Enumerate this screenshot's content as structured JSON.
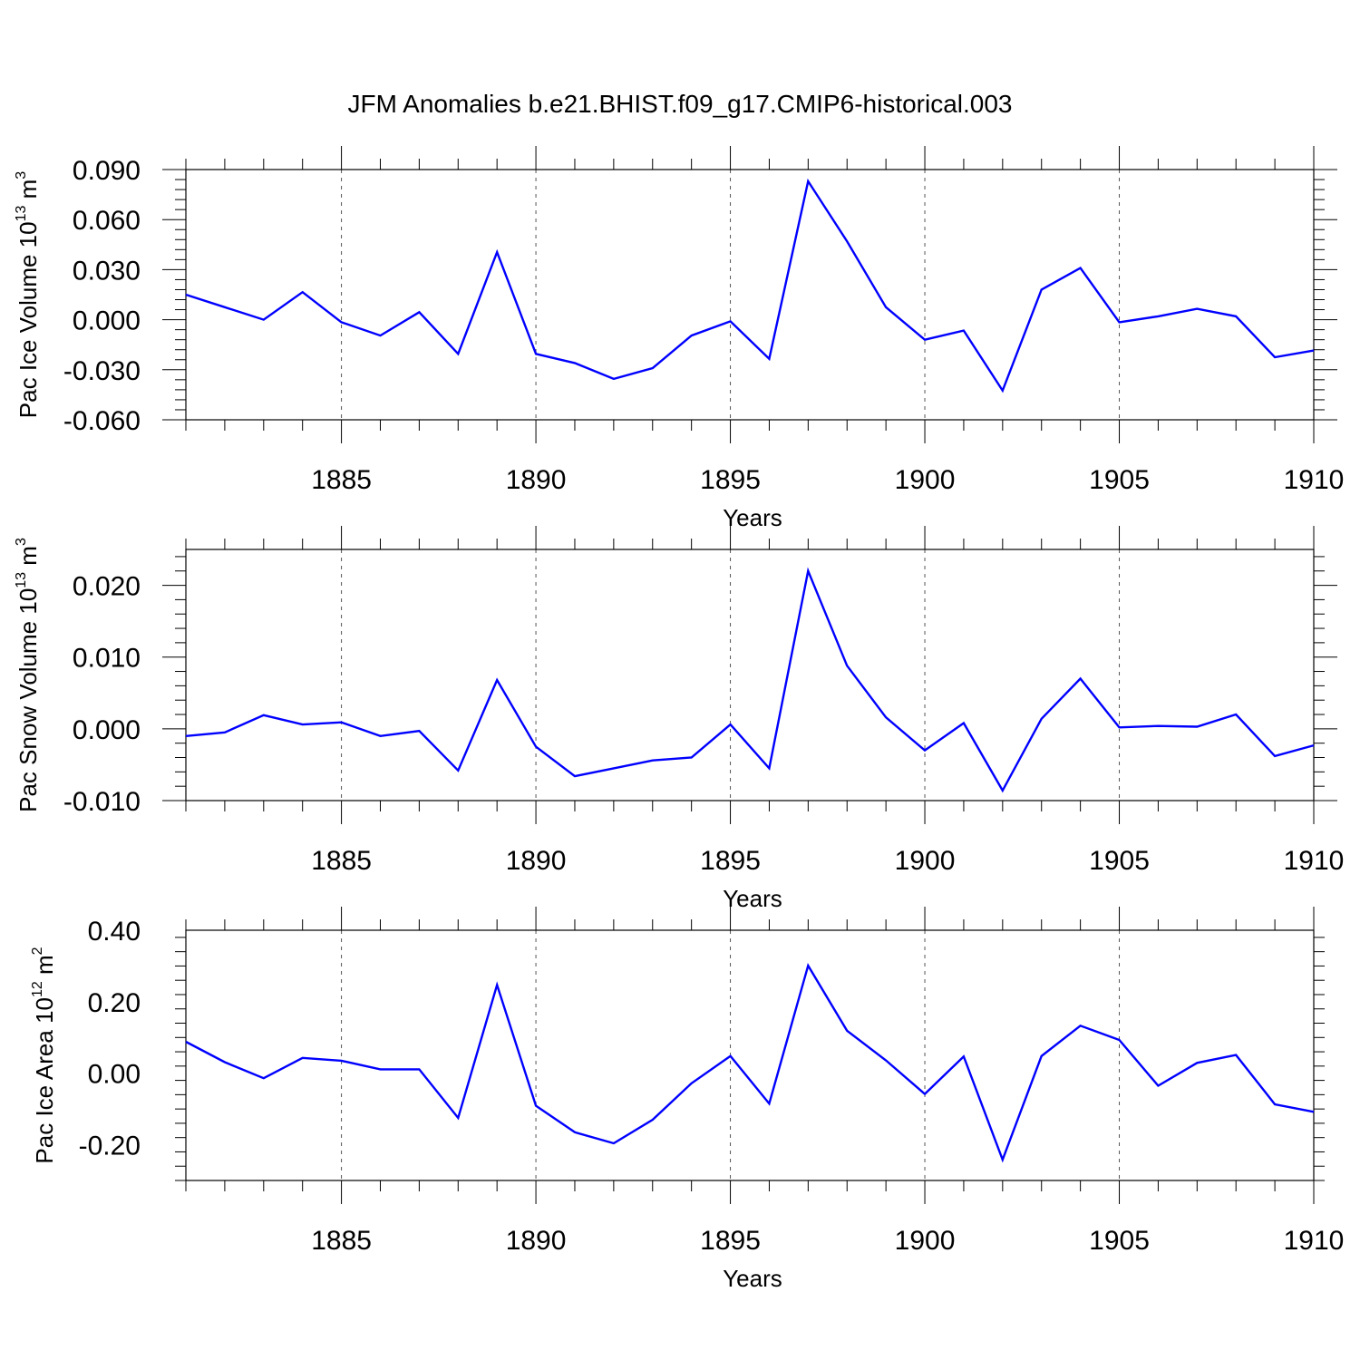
{
  "title": "JFM Anomalies b.e21.BHIST.f09_g17.CMIP6-historical.003",
  "colors": {
    "line": "#0000ff",
    "axis": "#000000",
    "grid": "#555555"
  },
  "chart_data": [
    {
      "type": "line",
      "ylabel": {
        "main": "Pac Ice Volume 10",
        "sup": "13",
        "tail": " m",
        "sup2": "3"
      },
      "xlabel": "Years",
      "xlim": [
        1881,
        1910
      ],
      "ylim": [
        -0.06,
        0.09
      ],
      "yticks": [
        "0.090",
        "0.060",
        "0.030",
        "0.000",
        "-0.030",
        "-0.060"
      ],
      "ytick_values": [
        0.09,
        0.06,
        0.03,
        0.0,
        -0.03,
        -0.06
      ],
      "xticks": [
        "1885",
        "1890",
        "1895",
        "1900",
        "1905",
        "1910"
      ],
      "xtick_values": [
        1885,
        1890,
        1895,
        1900,
        1905,
        1910
      ],
      "grid": "vertical dashed at major x ticks",
      "x": [
        1881,
        1882,
        1883,
        1884,
        1885,
        1886,
        1887,
        1888,
        1889,
        1890,
        1891,
        1892,
        1893,
        1894,
        1895,
        1896,
        1897,
        1898,
        1899,
        1900,
        1901,
        1902,
        1903,
        1904,
        1905,
        1906,
        1907,
        1908,
        1909,
        1910
      ],
      "series": [
        {
          "values": [
            0.015,
            0.0075,
            0.0,
            0.0165,
            -0.0015,
            -0.0095,
            0.0045,
            -0.0205,
            0.0405,
            -0.0205,
            -0.026,
            -0.0355,
            -0.029,
            -0.0095,
            -0.001,
            -0.0235,
            0.083,
            0.047,
            0.0075,
            -0.012,
            -0.0065,
            -0.0425,
            0.018,
            0.031,
            -0.0015,
            0.002,
            0.0065,
            0.002,
            -0.0225,
            -0.0185
          ]
        }
      ]
    },
    {
      "type": "line",
      "ylabel": {
        "main": "Pac Snow Volume 10",
        "sup": "13",
        "tail": " m",
        "sup2": "3"
      },
      "xlabel": "Years",
      "xlim": [
        1881,
        1910
      ],
      "ylim": [
        -0.01,
        0.025
      ],
      "yticks": [
        "0.020",
        "0.010",
        "0.000",
        "-0.010"
      ],
      "ytick_values": [
        0.02,
        0.01,
        0.0,
        -0.01
      ],
      "xticks": [
        "1885",
        "1890",
        "1895",
        "1900",
        "1905",
        "1910"
      ],
      "xtick_values": [
        1885,
        1890,
        1895,
        1900,
        1905,
        1910
      ],
      "grid": "vertical dashed at major x ticks",
      "x": [
        1881,
        1882,
        1883,
        1884,
        1885,
        1886,
        1887,
        1888,
        1889,
        1890,
        1891,
        1892,
        1893,
        1894,
        1895,
        1896,
        1897,
        1898,
        1899,
        1900,
        1901,
        1902,
        1903,
        1904,
        1905,
        1906,
        1907,
        1908,
        1909,
        1910
      ],
      "series": [
        {
          "values": [
            -0.001,
            -0.0005,
            0.0019,
            0.0006,
            0.0009,
            -0.001,
            -0.0003,
            -0.0058,
            0.0068,
            -0.0025,
            -0.0066,
            -0.0055,
            -0.0044,
            -0.004,
            0.0006,
            -0.0055,
            0.022,
            0.0088,
            0.0016,
            -0.003,
            0.0008,
            -0.0086,
            0.0014,
            0.007,
            0.0002,
            0.0004,
            0.0003,
            0.002,
            -0.0038,
            -0.0023
          ]
        }
      ]
    },
    {
      "type": "line",
      "ylabel": {
        "main": "Pac Ice Area 10",
        "sup": "12",
        "tail": " m",
        "sup2": "2"
      },
      "xlabel": "Years",
      "xlim": [
        1881,
        1910
      ],
      "ylim": [
        -0.3,
        0.4
      ],
      "yticks": [
        "0.40",
        "0.20",
        "0.00",
        "-0.20"
      ],
      "ytick_values": [
        0.4,
        0.2,
        0.0,
        -0.2
      ],
      "xticks": [
        "1885",
        "1890",
        "1895",
        "1900",
        "1905",
        "1910"
      ],
      "xtick_values": [
        1885,
        1890,
        1895,
        1900,
        1905,
        1910
      ],
      "grid": "vertical dashed at major x ticks",
      "x": [
        1881,
        1882,
        1883,
        1884,
        1885,
        1886,
        1887,
        1888,
        1889,
        1890,
        1891,
        1892,
        1893,
        1894,
        1895,
        1896,
        1897,
        1898,
        1899,
        1900,
        1901,
        1902,
        1903,
        1904,
        1905,
        1906,
        1907,
        1908,
        1909,
        1910
      ],
      "series": [
        {
          "values": [
            0.088,
            0.031,
            -0.014,
            0.043,
            0.035,
            0.011,
            0.011,
            -0.125,
            0.247,
            -0.091,
            -0.165,
            -0.196,
            -0.13,
            -0.028,
            0.048,
            -0.085,
            0.301,
            0.119,
            0.036,
            -0.058,
            0.047,
            -0.242,
            0.048,
            0.133,
            0.093,
            -0.035,
            0.029,
            0.051,
            -0.087,
            -0.108
          ]
        }
      ]
    }
  ]
}
